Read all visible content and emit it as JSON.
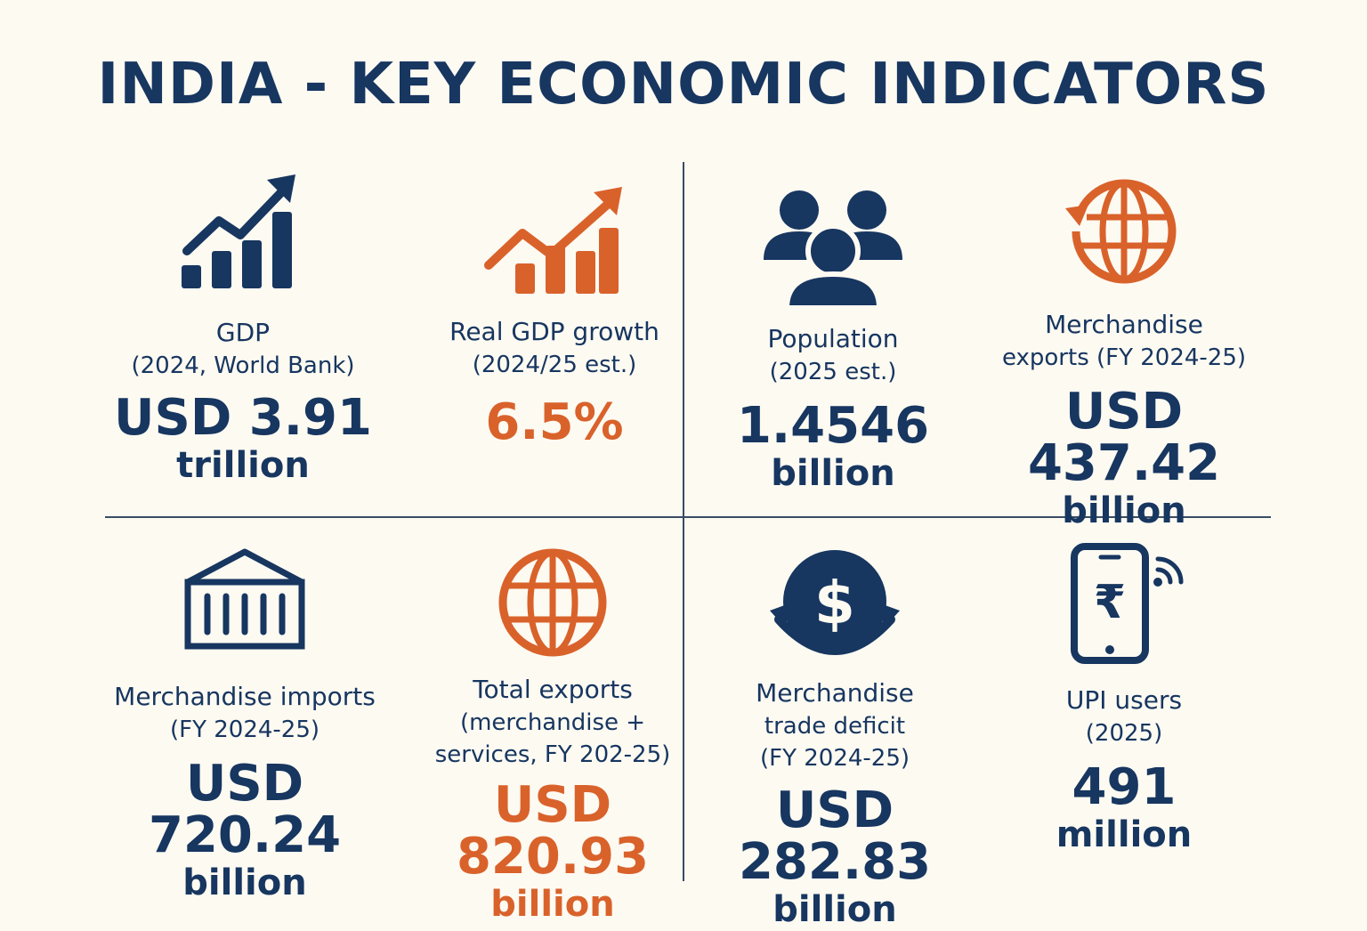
{
  "title": "INDIA - KEY ECONOMIC INDICATORS",
  "colors": {
    "navy": "#173660",
    "orange": "#d9622b",
    "background": "#fdfaf2"
  },
  "indicators": [
    {
      "icon": "bar-chart-up-icon",
      "label": "GDP",
      "sub": "(2024, World Bank)",
      "value": "USD 3.91",
      "unit": "trillion"
    },
    {
      "icon": "growth-chart-icon",
      "label": "Real GDP growth",
      "sub": "(2024/25 est.)",
      "value": "6.5%",
      "unit": ""
    },
    {
      "icon": "people-icon",
      "label": "Population",
      "sub": "(2025 est.)",
      "value": "1.4546",
      "unit": "billion"
    },
    {
      "icon": "globe-arrow-icon",
      "label": "Merchandise",
      "sub": "exports (FY 2024-25)",
      "value": "USD 437.42",
      "unit": "billion"
    },
    {
      "icon": "container-icon",
      "label": "Merchandise imports",
      "sub": "(FY 2024-25)",
      "value": "USD 720.24",
      "unit": "billion"
    },
    {
      "icon": "globe-icon",
      "label": "Total exports",
      "sub": "(merchandise +",
      "sub2": "services, FY 202-25)",
      "value": "USD 820.93",
      "unit": "billion"
    },
    {
      "icon": "dollar-exchange-icon",
      "label": "Merchandise",
      "sub": "trade deficit",
      "sub2": "(FY 2024-25)",
      "value": "USD 282.83",
      "unit": "billion"
    },
    {
      "icon": "phone-rupee-icon",
      "label": "UPI users",
      "sub": "(2025)",
      "value": "491",
      "unit": "million"
    }
  ]
}
